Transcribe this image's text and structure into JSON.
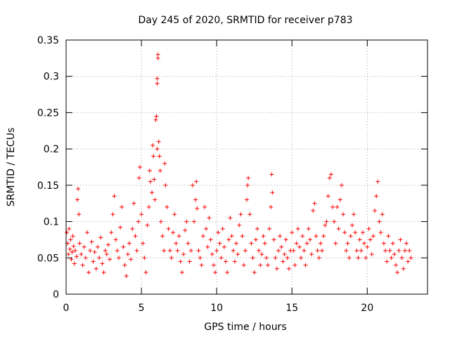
{
  "chart_data": {
    "type": "scatter",
    "title": "Day 245 of 2020, SRMTID for receiver p783",
    "xlabel": "GPS time / hours",
    "ylabel": "SRMTID / TECUs",
    "xlim": [
      0,
      24
    ],
    "ylim": [
      0,
      0.35
    ],
    "x_ticks": [
      0,
      5,
      10,
      15,
      20
    ],
    "x_tick_labels": [
      "0",
      "5",
      "10",
      "15",
      "20"
    ],
    "y_ticks": [
      0,
      0.05,
      0.1,
      0.15,
      0.2,
      0.25,
      0.3,
      0.35
    ],
    "y_tick_labels": [
      "0",
      "0.05",
      "0.1",
      "0.15",
      "0.2",
      "0.25",
      "0.3",
      "0.35"
    ],
    "grid": true,
    "marker": "+",
    "marker_color": "#ff0000",
    "series": [
      {
        "name": "SRMTID",
        "points": [
          [
            0.05,
            0.085
          ],
          [
            0.1,
            0.07
          ],
          [
            0.15,
            0.055
          ],
          [
            0.2,
            0.09
          ],
          [
            0.25,
            0.062
          ],
          [
            0.3,
            0.075
          ],
          [
            0.35,
            0.048
          ],
          [
            0.4,
            0.058
          ],
          [
            0.45,
            0.08
          ],
          [
            0.5,
            0.066
          ],
          [
            0.55,
            0.042
          ],
          [
            0.6,
            0.06
          ],
          [
            0.7,
            0.052
          ],
          [
            0.75,
            0.13
          ],
          [
            0.8,
            0.145
          ],
          [
            0.85,
            0.11
          ],
          [
            0.9,
            0.07
          ],
          [
            1.0,
            0.055
          ],
          [
            1.1,
            0.04
          ],
          [
            1.2,
            0.065
          ],
          [
            1.3,
            0.05
          ],
          [
            1.4,
            0.085
          ],
          [
            1.5,
            0.03
          ],
          [
            1.6,
            0.06
          ],
          [
            1.7,
            0.072
          ],
          [
            1.8,
            0.045
          ],
          [
            1.9,
            0.058
          ],
          [
            2.0,
            0.035
          ],
          [
            2.1,
            0.065
          ],
          [
            2.2,
            0.05
          ],
          [
            2.3,
            0.078
          ],
          [
            2.4,
            0.042
          ],
          [
            2.5,
            0.03
          ],
          [
            2.6,
            0.06
          ],
          [
            2.7,
            0.055
          ],
          [
            2.8,
            0.068
          ],
          [
            2.9,
            0.048
          ],
          [
            3.0,
            0.085
          ],
          [
            3.1,
            0.11
          ],
          [
            3.2,
            0.135
          ],
          [
            3.3,
            0.075
          ],
          [
            3.4,
            0.06
          ],
          [
            3.5,
            0.05
          ],
          [
            3.6,
            0.092
          ],
          [
            3.7,
            0.12
          ],
          [
            3.8,
            0.065
          ],
          [
            3.9,
            0.04
          ],
          [
            4.0,
            0.025
          ],
          [
            4.1,
            0.055
          ],
          [
            4.2,
            0.07
          ],
          [
            4.3,
            0.048
          ],
          [
            4.4,
            0.09
          ],
          [
            4.5,
            0.125
          ],
          [
            4.6,
            0.08
          ],
          [
            4.7,
            0.06
          ],
          [
            4.8,
            0.1
          ],
          [
            4.85,
            0.16
          ],
          [
            4.9,
            0.175
          ],
          [
            5.0,
            0.11
          ],
          [
            5.1,
            0.07
          ],
          [
            5.2,
            0.05
          ],
          [
            5.3,
            0.03
          ],
          [
            5.4,
            0.095
          ],
          [
            5.5,
            0.12
          ],
          [
            5.55,
            0.17
          ],
          [
            5.6,
            0.155
          ],
          [
            5.7,
            0.14
          ],
          [
            5.75,
            0.205
          ],
          [
            5.8,
            0.19
          ],
          [
            5.85,
            0.158
          ],
          [
            5.9,
            0.13
          ],
          [
            5.95,
            0.24
          ],
          [
            6.0,
            0.245
          ],
          [
            6.05,
            0.2
          ],
          [
            6.05,
            0.29
          ],
          [
            6.05,
            0.297
          ],
          [
            6.1,
            0.325
          ],
          [
            6.1,
            0.33
          ],
          [
            6.15,
            0.21
          ],
          [
            6.2,
            0.19
          ],
          [
            6.25,
            0.17
          ],
          [
            6.3,
            0.1
          ],
          [
            6.4,
            0.08
          ],
          [
            6.5,
            0.06
          ],
          [
            6.55,
            0.18
          ],
          [
            6.6,
            0.15
          ],
          [
            6.7,
            0.12
          ],
          [
            6.8,
            0.09
          ],
          [
            6.9,
            0.06
          ],
          [
            7.0,
            0.05
          ],
          [
            7.1,
            0.085
          ],
          [
            7.2,
            0.11
          ],
          [
            7.3,
            0.07
          ],
          [
            7.4,
            0.06
          ],
          [
            7.5,
            0.08
          ],
          [
            7.6,
            0.045
          ],
          [
            7.7,
            0.03
          ],
          [
            7.8,
            0.055
          ],
          [
            7.9,
            0.088
          ],
          [
            8.0,
            0.1
          ],
          [
            8.1,
            0.07
          ],
          [
            8.2,
            0.045
          ],
          [
            8.3,
            0.06
          ],
          [
            8.4,
            0.15
          ],
          [
            8.5,
            0.1
          ],
          [
            8.6,
            0.13
          ],
          [
            8.65,
            0.155
          ],
          [
            8.7,
            0.118
          ],
          [
            8.8,
            0.06
          ],
          [
            8.9,
            0.05
          ],
          [
            9.0,
            0.04
          ],
          [
            9.1,
            0.08
          ],
          [
            9.2,
            0.12
          ],
          [
            9.3,
            0.09
          ],
          [
            9.4,
            0.065
          ],
          [
            9.5,
            0.105
          ],
          [
            9.6,
            0.075
          ],
          [
            9.7,
            0.055
          ],
          [
            9.8,
            0.04
          ],
          [
            9.9,
            0.03
          ],
          [
            10.0,
            0.06
          ],
          [
            10.1,
            0.085
          ],
          [
            10.2,
            0.07
          ],
          [
            10.3,
            0.05
          ],
          [
            10.4,
            0.09
          ],
          [
            10.5,
            0.065
          ],
          [
            10.6,
            0.045
          ],
          [
            10.7,
            0.03
          ],
          [
            10.8,
            0.075
          ],
          [
            10.9,
            0.105
          ],
          [
            11.0,
            0.08
          ],
          [
            11.1,
            0.06
          ],
          [
            11.2,
            0.045
          ],
          [
            11.3,
            0.07
          ],
          [
            11.4,
            0.055
          ],
          [
            11.5,
            0.095
          ],
          [
            11.6,
            0.11
          ],
          [
            11.7,
            0.08
          ],
          [
            11.8,
            0.04
          ],
          [
            11.9,
            0.06
          ],
          [
            12.0,
            0.13
          ],
          [
            12.05,
            0.15
          ],
          [
            12.1,
            0.16
          ],
          [
            12.2,
            0.11
          ],
          [
            12.3,
            0.07
          ],
          [
            12.4,
            0.05
          ],
          [
            12.5,
            0.03
          ],
          [
            12.6,
            0.075
          ],
          [
            12.7,
            0.09
          ],
          [
            12.8,
            0.06
          ],
          [
            12.9,
            0.04
          ],
          [
            13.0,
            0.055
          ],
          [
            13.1,
            0.08
          ],
          [
            13.2,
            0.07
          ],
          [
            13.3,
            0.05
          ],
          [
            13.4,
            0.04
          ],
          [
            13.5,
            0.09
          ],
          [
            13.6,
            0.12
          ],
          [
            13.65,
            0.165
          ],
          [
            13.7,
            0.14
          ],
          [
            13.8,
            0.075
          ],
          [
            13.9,
            0.05
          ],
          [
            14.0,
            0.035
          ],
          [
            14.1,
            0.06
          ],
          [
            14.2,
            0.08
          ],
          [
            14.3,
            0.065
          ],
          [
            14.4,
            0.045
          ],
          [
            14.5,
            0.055
          ],
          [
            14.6,
            0.075
          ],
          [
            14.7,
            0.05
          ],
          [
            14.8,
            0.035
          ],
          [
            14.9,
            0.06
          ],
          [
            15.0,
            0.085
          ],
          [
            15.1,
            0.06
          ],
          [
            15.2,
            0.04
          ],
          [
            15.3,
            0.07
          ],
          [
            15.4,
            0.09
          ],
          [
            15.5,
            0.065
          ],
          [
            15.6,
            0.05
          ],
          [
            15.7,
            0.08
          ],
          [
            15.8,
            0.06
          ],
          [
            15.9,
            0.04
          ],
          [
            16.0,
            0.07
          ],
          [
            16.1,
            0.09
          ],
          [
            16.2,
            0.075
          ],
          [
            16.3,
            0.055
          ],
          [
            16.4,
            0.115
          ],
          [
            16.5,
            0.125
          ],
          [
            16.6,
            0.08
          ],
          [
            16.7,
            0.06
          ],
          [
            16.8,
            0.05
          ],
          [
            16.9,
            0.07
          ],
          [
            17.0,
            0.06
          ],
          [
            17.1,
            0.08
          ],
          [
            17.2,
            0.095
          ],
          [
            17.3,
            0.1
          ],
          [
            17.4,
            0.135
          ],
          [
            17.5,
            0.16
          ],
          [
            17.6,
            0.165
          ],
          [
            17.7,
            0.12
          ],
          [
            17.8,
            0.1
          ],
          [
            17.9,
            0.07
          ],
          [
            18.0,
            0.12
          ],
          [
            18.1,
            0.09
          ],
          [
            18.2,
            0.13
          ],
          [
            18.3,
            0.15
          ],
          [
            18.4,
            0.11
          ],
          [
            18.5,
            0.085
          ],
          [
            18.6,
            0.06
          ],
          [
            18.7,
            0.07
          ],
          [
            18.8,
            0.05
          ],
          [
            18.9,
            0.08
          ],
          [
            19.0,
            0.095
          ],
          [
            19.1,
            0.11
          ],
          [
            19.2,
            0.085
          ],
          [
            19.3,
            0.06
          ],
          [
            19.4,
            0.05
          ],
          [
            19.5,
            0.075
          ],
          [
            19.6,
            0.06
          ],
          [
            19.7,
            0.085
          ],
          [
            19.8,
            0.07
          ],
          [
            19.9,
            0.05
          ],
          [
            20.0,
            0.065
          ],
          [
            20.1,
            0.09
          ],
          [
            20.2,
            0.075
          ],
          [
            20.3,
            0.055
          ],
          [
            20.4,
            0.08
          ],
          [
            20.5,
            0.115
          ],
          [
            20.6,
            0.135
          ],
          [
            20.7,
            0.155
          ],
          [
            20.8,
            0.1
          ],
          [
            20.9,
            0.085
          ],
          [
            21.0,
            0.11
          ],
          [
            21.1,
            0.07
          ],
          [
            21.2,
            0.06
          ],
          [
            21.3,
            0.045
          ],
          [
            21.4,
            0.08
          ],
          [
            21.5,
            0.06
          ],
          [
            21.6,
            0.05
          ],
          [
            21.7,
            0.07
          ],
          [
            21.8,
            0.055
          ],
          [
            21.9,
            0.04
          ],
          [
            22.0,
            0.03
          ],
          [
            22.1,
            0.06
          ],
          [
            22.2,
            0.075
          ],
          [
            22.3,
            0.05
          ],
          [
            22.4,
            0.035
          ],
          [
            22.5,
            0.06
          ],
          [
            22.6,
            0.07
          ],
          [
            22.7,
            0.045
          ],
          [
            22.8,
            0.06
          ],
          [
            22.9,
            0.05
          ]
        ]
      }
    ]
  }
}
